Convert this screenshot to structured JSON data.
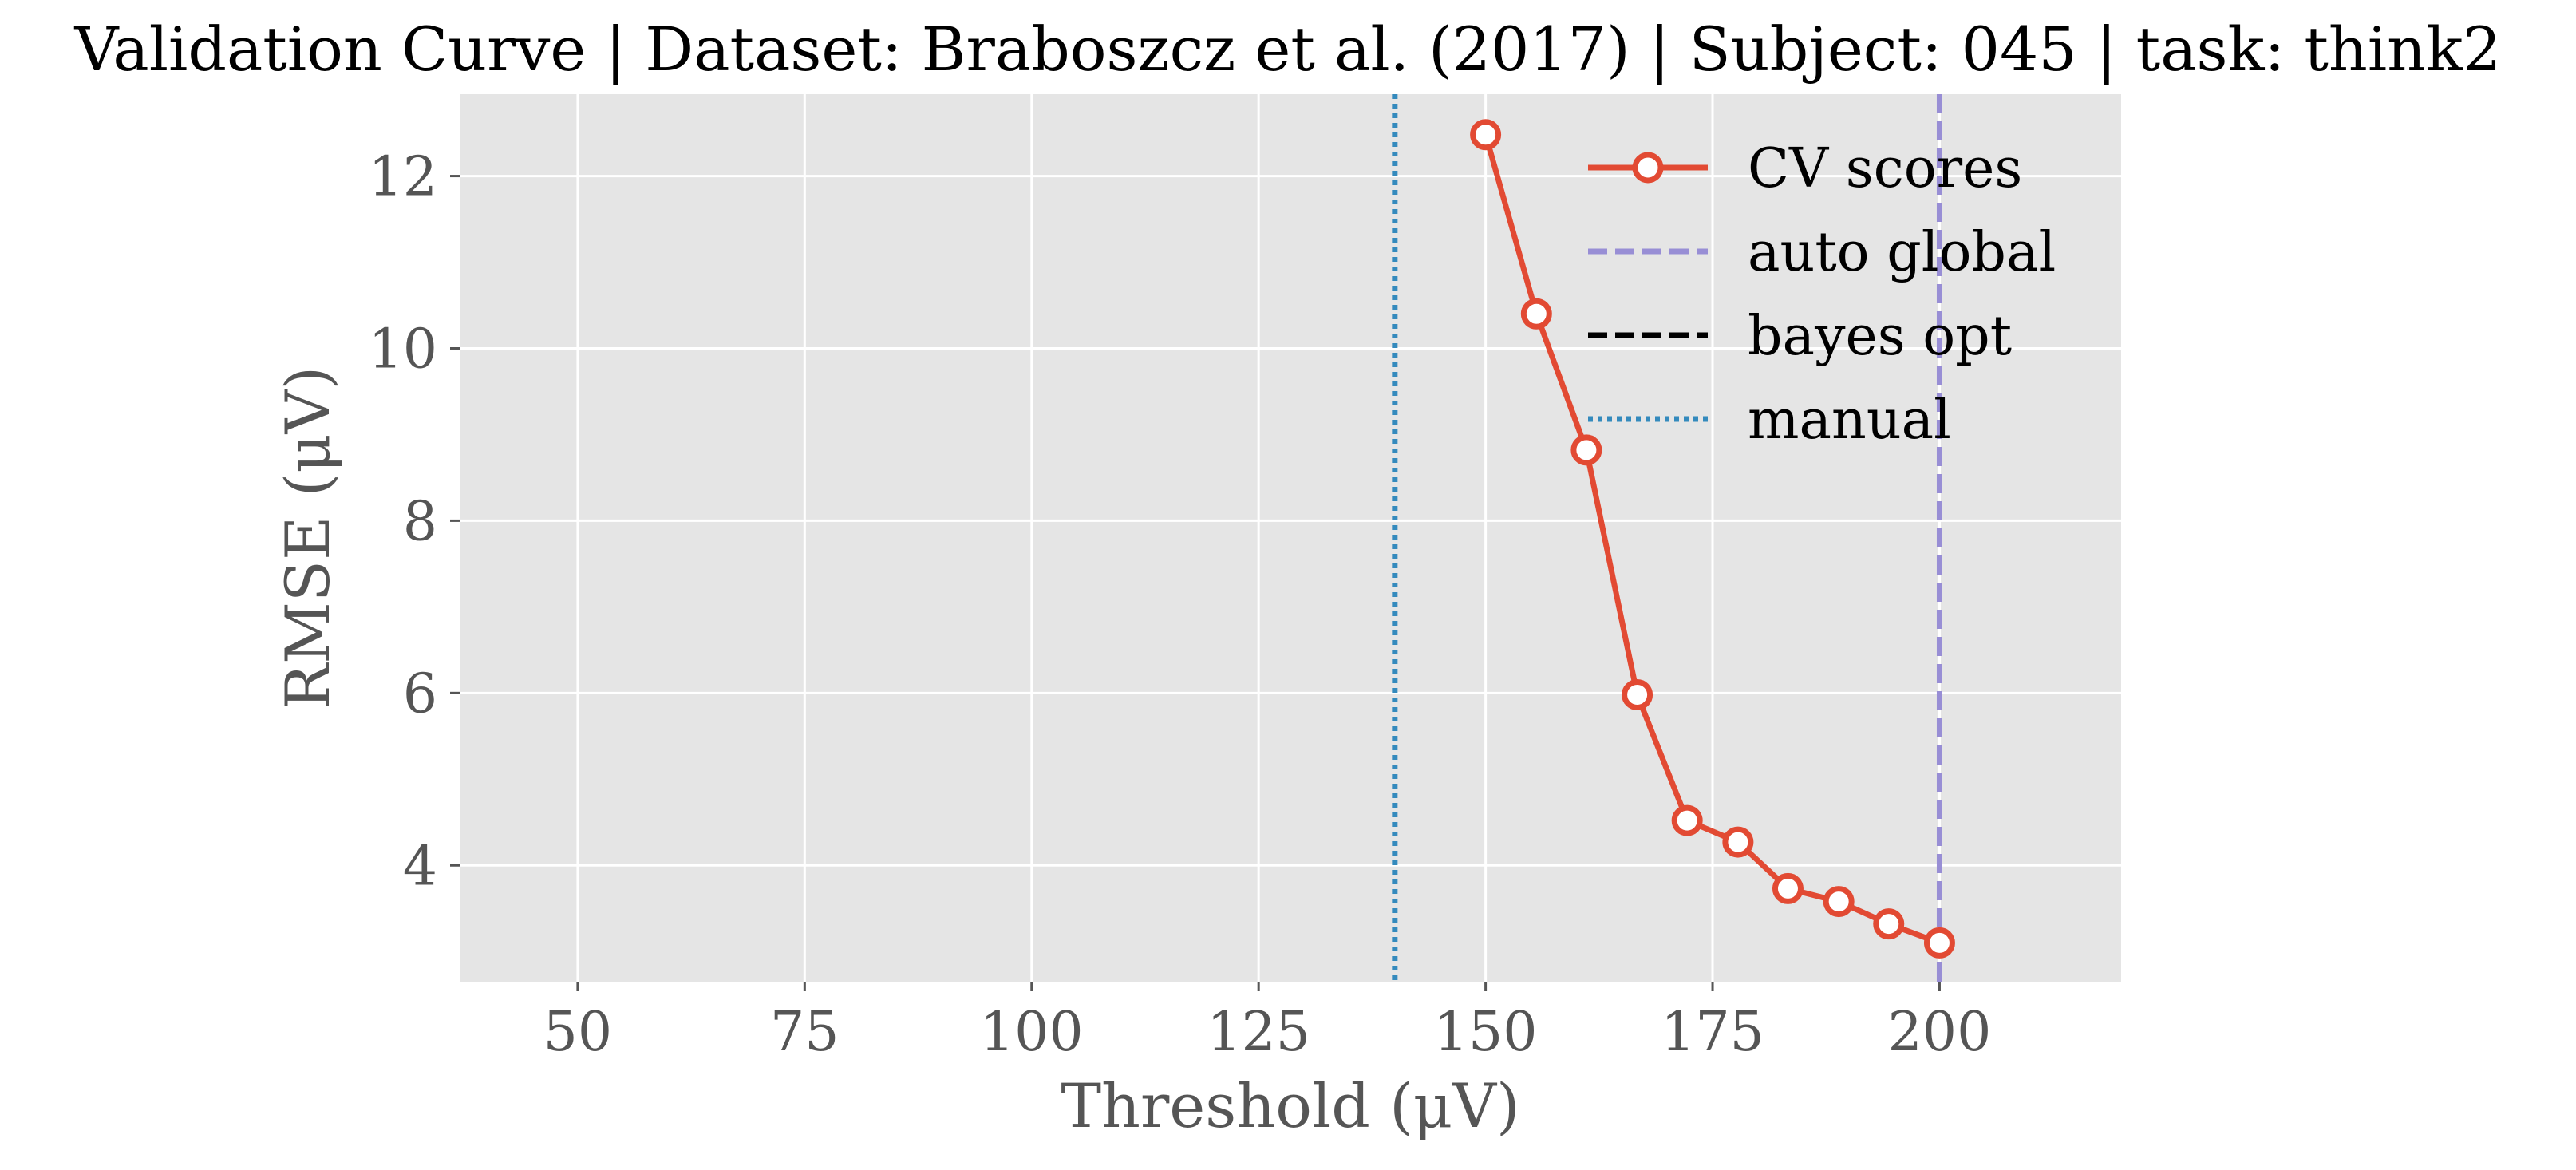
{
  "chart_data": {
    "type": "line",
    "title": "Validation Curve | Dataset: Braboszcz et al. (2017) | Subject: 045 | task: think2",
    "xlabel": "Threshold (μV)",
    "ylabel": "RMSE (μV)",
    "xlim": [
      37,
      220
    ],
    "ylim": [
      2.65,
      12.95
    ],
    "grid": true,
    "background": "#e5e5e5",
    "x_ticks": [
      50,
      75,
      100,
      125,
      150,
      175,
      200
    ],
    "y_ticks": [
      4,
      6,
      8,
      10,
      12
    ],
    "legend_position": "top-right",
    "series": [
      {
        "name": "CV scores",
        "color": "#e24a33",
        "marker": "circle-open",
        "x": [
          150,
          155.6,
          161.1,
          166.7,
          172.2,
          177.8,
          183.3,
          188.9,
          194.4,
          200
        ],
        "y": [
          12.48,
          10.4,
          8.82,
          5.98,
          4.52,
          4.27,
          3.73,
          3.58,
          3.32,
          3.1
        ]
      }
    ],
    "reference_lines": [
      {
        "name": "auto global",
        "orientation": "vertical",
        "x": 200,
        "color": "#988ed5",
        "style": "dashed"
      },
      {
        "name": "bayes opt",
        "orientation": "vertical",
        "x": null,
        "color": "#000000",
        "style": "dashed"
      },
      {
        "name": "manual",
        "orientation": "vertical",
        "x": 140,
        "color": "#348abd",
        "style": "dotted"
      }
    ],
    "legend": [
      {
        "label": "CV scores",
        "color": "#e24a33",
        "style": "solid-marker"
      },
      {
        "label": "auto global",
        "color": "#988ed5",
        "style": "dashed"
      },
      {
        "label": "bayes opt",
        "color": "#000000",
        "style": "dashed"
      },
      {
        "label": "manual",
        "color": "#348abd",
        "style": "dotted"
      }
    ]
  }
}
